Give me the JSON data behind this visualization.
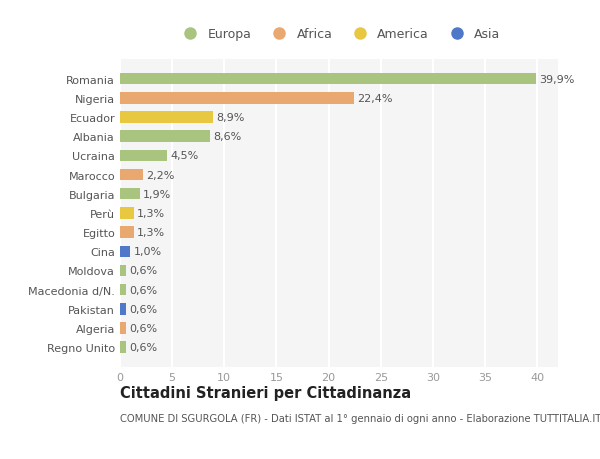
{
  "countries": [
    "Romania",
    "Nigeria",
    "Ecuador",
    "Albania",
    "Ucraina",
    "Marocco",
    "Bulgaria",
    "Perù",
    "Egitto",
    "Cina",
    "Moldova",
    "Macedonia d/N.",
    "Pakistan",
    "Algeria",
    "Regno Unito"
  ],
  "values": [
    39.9,
    22.4,
    8.9,
    8.6,
    4.5,
    2.2,
    1.9,
    1.3,
    1.3,
    1.0,
    0.6,
    0.6,
    0.6,
    0.6,
    0.6
  ],
  "labels": [
    "39,9%",
    "22,4%",
    "8,9%",
    "8,6%",
    "4,5%",
    "2,2%",
    "1,9%",
    "1,3%",
    "1,3%",
    "1,0%",
    "0,6%",
    "0,6%",
    "0,6%",
    "0,6%",
    "0,6%"
  ],
  "continents": [
    "Europa",
    "Africa",
    "America",
    "Europa",
    "Europa",
    "Africa",
    "Europa",
    "America",
    "Africa",
    "Asia",
    "Europa",
    "Europa",
    "Asia",
    "Africa",
    "Europa"
  ],
  "continent_colors": {
    "Europa": "#a8c47e",
    "Africa": "#e8a870",
    "America": "#e8c840",
    "Asia": "#5078c8"
  },
  "xlim": [
    0,
    42
  ],
  "xticks": [
    0,
    5,
    10,
    15,
    20,
    25,
    30,
    35,
    40
  ],
  "background_color": "#ffffff",
  "plot_bg_color": "#f5f5f5",
  "grid_color": "#ffffff",
  "title": "Cittadini Stranieri per Cittadinanza",
  "subtitle": "COMUNE DI SGURGOLA (FR) - Dati ISTAT al 1° gennaio di ogni anno - Elaborazione TUTTITALIA.IT",
  "bar_height": 0.6,
  "label_fontsize": 8,
  "tick_fontsize": 8,
  "title_fontsize": 10.5,
  "subtitle_fontsize": 7.2,
  "legend_order": [
    "Europa",
    "Africa",
    "America",
    "Asia"
  ]
}
